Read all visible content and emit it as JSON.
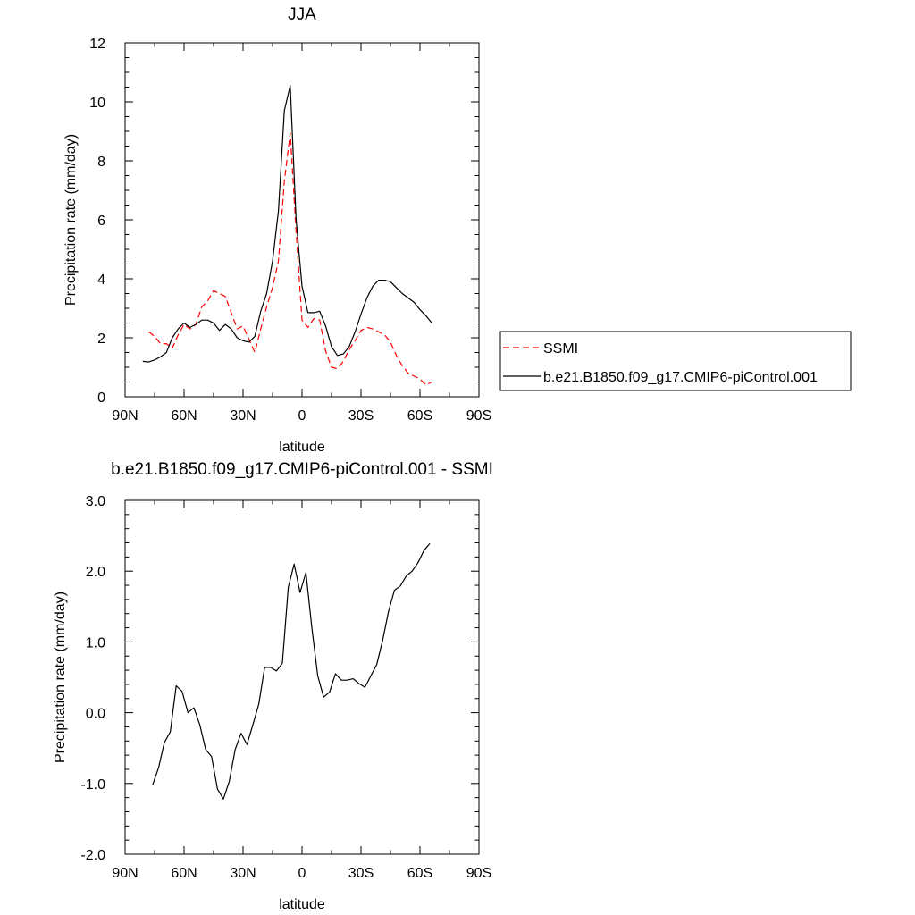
{
  "chart_data": [
    {
      "type": "line",
      "title": "JJA",
      "xlabel": "latitude",
      "ylabel": "Precipitation rate (mm/day)",
      "xlim": [
        90,
        -90
      ],
      "ylim": [
        0,
        12
      ],
      "x_ticks": [
        90,
        60,
        30,
        0,
        -30,
        -60,
        -90
      ],
      "x_tick_labels": [
        "90N",
        "60N",
        "30N",
        "0",
        "30S",
        "60S",
        "90S"
      ],
      "y_ticks": [
        0,
        2,
        4,
        6,
        8,
        10,
        12
      ],
      "y_tick_labels": [
        "0",
        "2",
        "4",
        "6",
        "8",
        "10",
        "12"
      ],
      "grid": false,
      "legend_position": "right, outside plot",
      "series": [
        {
          "name": "SSMI",
          "color": "#ff0000",
          "style": "dashed",
          "x": [
            78,
            75,
            72,
            69,
            66,
            63,
            60,
            57,
            54,
            51,
            48,
            45,
            42,
            39,
            36,
            33,
            30,
            27,
            24,
            21,
            18,
            15,
            12,
            9,
            6,
            3,
            0,
            -3,
            -6,
            -9,
            -12,
            -15,
            -18,
            -21,
            -24,
            -27,
            -30,
            -33,
            -36,
            -39,
            -42,
            -45,
            -48,
            -51,
            -54,
            -57,
            -60,
            -63,
            -66
          ],
          "y": [
            2.2,
            2.05,
            1.8,
            1.8,
            1.65,
            2.1,
            2.45,
            2.3,
            2.45,
            3.05,
            3.25,
            3.6,
            3.5,
            3.4,
            2.85,
            2.3,
            2.4,
            1.95,
            1.5,
            2.3,
            3.05,
            3.7,
            4.6,
            7.3,
            8.95,
            5.6,
            2.6,
            2.35,
            2.65,
            2.6,
            1.55,
            1.0,
            0.95,
            1.2,
            1.6,
            1.9,
            2.25,
            2.35,
            2.3,
            2.2,
            2.1,
            1.85,
            1.4,
            1.05,
            0.8,
            0.7,
            0.6,
            0.4,
            0.5
          ]
        },
        {
          "name": "b.e21.B1850.f09_g17.CMIP6-piControl.001",
          "color": "#000000",
          "style": "solid",
          "x": [
            81,
            78,
            75,
            72,
            69,
            66,
            63,
            60,
            57,
            54,
            51,
            48,
            45,
            42,
            39,
            36,
            33,
            30,
            27,
            24,
            21,
            18,
            15,
            12,
            9,
            6,
            3,
            0,
            -3,
            -6,
            -9,
            -12,
            -15,
            -18,
            -21,
            -24,
            -27,
            -30,
            -33,
            -36,
            -39,
            -42,
            -45,
            -48,
            -51,
            -54,
            -57,
            -60,
            -63,
            -66
          ],
          "y": [
            1.2,
            1.18,
            1.25,
            1.35,
            1.5,
            2.0,
            2.3,
            2.5,
            2.35,
            2.45,
            2.6,
            2.6,
            2.5,
            2.25,
            2.45,
            2.3,
            2.0,
            1.9,
            1.85,
            2.05,
            2.9,
            3.5,
            4.6,
            6.3,
            9.7,
            10.55,
            6.0,
            3.75,
            2.85,
            2.85,
            2.9,
            2.4,
            1.7,
            1.4,
            1.45,
            1.7,
            2.2,
            2.8,
            3.35,
            3.75,
            3.95,
            3.95,
            3.9,
            3.7,
            3.5,
            3.35,
            3.2,
            2.95,
            2.75,
            2.5
          ]
        }
      ]
    },
    {
      "type": "line",
      "title": "b.e21.B1850.f09_g17.CMIP6-piControl.001 - SSMI",
      "xlabel": "latitude",
      "ylabel": "Precipitation rate (mm/day)",
      "xlim": [
        90,
        -90
      ],
      "ylim": [
        -2.0,
        3.0
      ],
      "x_ticks": [
        90,
        60,
        30,
        0,
        -30,
        -60,
        -90
      ],
      "x_tick_labels": [
        "90N",
        "60N",
        "30N",
        "0",
        "30S",
        "60S",
        "90S"
      ],
      "y_ticks": [
        -2,
        -1,
        0,
        1,
        2,
        3
      ],
      "y_tick_labels": [
        "-2.0",
        "-1.0",
        "0.0",
        "1.0",
        "2.0",
        "3.0"
      ],
      "grid": false,
      "series": [
        {
          "color": "#000000",
          "style": "solid",
          "x": [
            76,
            73,
            70,
            67,
            64,
            61,
            58,
            55,
            52,
            49,
            46,
            43,
            40,
            37,
            34,
            31,
            28,
            25,
            22,
            19,
            16,
            13,
            10,
            7,
            4,
            1,
            -2,
            -5,
            -8,
            -11,
            -14,
            -17,
            -20,
            -23,
            -26,
            -29,
            -32,
            -35,
            -38,
            -41,
            -44,
            -47,
            -50,
            -53,
            -56,
            -59,
            -62,
            -65
          ],
          "y": [
            -1.02,
            -0.78,
            -0.42,
            -0.27,
            0.38,
            0.3,
            0.0,
            0.07,
            -0.17,
            -0.52,
            -0.62,
            -1.08,
            -1.22,
            -0.97,
            -0.52,
            -0.29,
            -0.45,
            -0.17,
            0.12,
            0.64,
            0.64,
            0.59,
            0.7,
            1.77,
            2.1,
            1.7,
            1.98,
            1.2,
            0.52,
            0.22,
            0.29,
            0.55,
            0.46,
            0.46,
            0.48,
            0.41,
            0.36,
            0.52,
            0.68,
            1.02,
            1.43,
            1.73,
            1.79,
            1.93,
            2.0,
            2.12,
            2.29,
            2.39
          ]
        }
      ]
    }
  ],
  "legend": {
    "items": [
      "SSMI",
      "b.e21.B1850.f09_g17.CMIP6-piControl.001"
    ]
  }
}
